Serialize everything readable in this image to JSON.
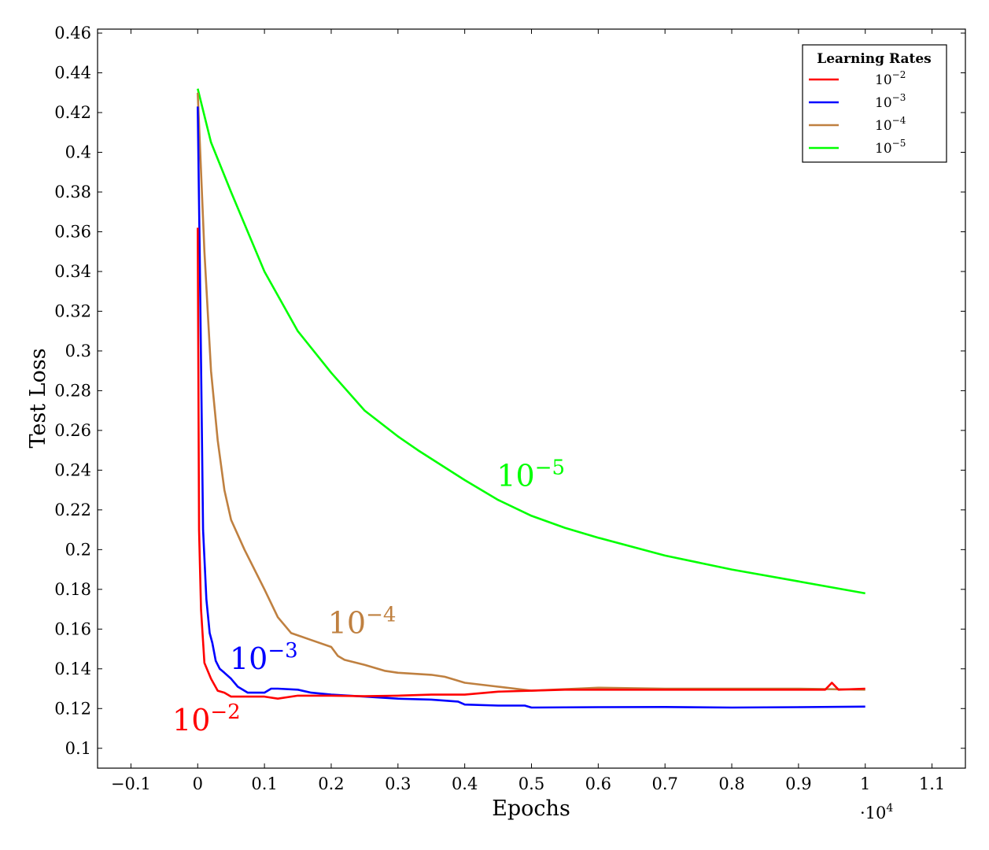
{
  "chart_data": {
    "type": "line",
    "xlabel": "Epochs",
    "ylabel": "Test Loss",
    "x_multiplier_label": "·10",
    "x_multiplier_exp": "4",
    "xlim": [
      -0.15,
      1.15
    ],
    "ylim": [
      0.09,
      0.462
    ],
    "xticks": [
      -0.1,
      0,
      0.1,
      0.2,
      0.3,
      0.4,
      0.5,
      0.6,
      0.7,
      0.8,
      0.9,
      1,
      1.1
    ],
    "xtick_labels": [
      "−0.1",
      "0",
      "0.1",
      "0.2",
      "0.3",
      "0.4",
      "0.5",
      "0.6",
      "0.7",
      "0.8",
      "0.9",
      "1",
      "1.1"
    ],
    "yticks": [
      0.1,
      0.12,
      0.14,
      0.16,
      0.18,
      0.2,
      0.22,
      0.24,
      0.26,
      0.28,
      0.3,
      0.32,
      0.34,
      0.36,
      0.38,
      0.4,
      0.42,
      0.44,
      0.46
    ],
    "ytick_labels": [
      "0.1",
      "0.12",
      "0.14",
      "0.16",
      "0.18",
      "0.2",
      "0.22",
      "0.24",
      "0.26",
      "0.28",
      "0.3",
      "0.32",
      "0.34",
      "0.36",
      "0.38",
      "0.4",
      "0.42",
      "0.44",
      "0.46"
    ],
    "grid": false,
    "legend": {
      "title": "Learning Rates",
      "placement": "top-right",
      "entries": [
        {
          "base": "10",
          "exp": "−2",
          "color": "#ff0000"
        },
        {
          "base": "10",
          "exp": "−3",
          "color": "#0000ff"
        },
        {
          "base": "10",
          "exp": "−4",
          "color": "#bf8040"
        },
        {
          "base": "10",
          "exp": "−5",
          "color": "#00ff00"
        }
      ]
    },
    "series": [
      {
        "color": "#ff0000",
        "annotation_base": "10",
        "annotation_exp": "−2",
        "x": [
          0,
          0.002,
          0.005,
          0.01,
          0.02,
          0.03,
          0.04,
          0.05,
          0.07,
          0.1,
          0.12,
          0.15,
          0.2,
          0.25,
          0.3,
          0.35,
          0.4,
          0.45,
          0.5,
          0.55,
          0.6,
          0.7,
          0.8,
          0.9,
          0.94,
          0.95,
          0.96,
          1.0
        ],
        "y": [
          0.362,
          0.21,
          0.17,
          0.143,
          0.135,
          0.129,
          0.128,
          0.126,
          0.126,
          0.126,
          0.125,
          0.1265,
          0.1265,
          0.1262,
          0.1265,
          0.127,
          0.127,
          0.1285,
          0.129,
          0.1295,
          0.1295,
          0.1295,
          0.1295,
          0.1295,
          0.1295,
          0.133,
          0.1295,
          0.13
        ]
      },
      {
        "color": "#0000ff",
        "annotation_base": "10",
        "annotation_exp": "−3",
        "x": [
          0,
          0.003,
          0.008,
          0.013,
          0.018,
          0.022,
          0.027,
          0.033,
          0.04,
          0.05,
          0.06,
          0.075,
          0.1,
          0.11,
          0.12,
          0.15,
          0.17,
          0.2,
          0.25,
          0.3,
          0.35,
          0.39,
          0.4,
          0.45,
          0.49,
          0.5,
          0.6,
          0.7,
          0.8,
          0.9,
          1.0
        ],
        "y": [
          0.423,
          0.35,
          0.21,
          0.175,
          0.158,
          0.153,
          0.144,
          0.14,
          0.138,
          0.135,
          0.131,
          0.128,
          0.128,
          0.13,
          0.13,
          0.1295,
          0.128,
          0.127,
          0.126,
          0.125,
          0.1245,
          0.1235,
          0.122,
          0.1215,
          0.1215,
          0.1205,
          0.1207,
          0.1208,
          0.1205,
          0.1207,
          0.121
        ]
      },
      {
        "color": "#bf8040",
        "annotation_base": "10",
        "annotation_exp": "−4",
        "x": [
          0,
          0.01,
          0.02,
          0.03,
          0.04,
          0.05,
          0.07,
          0.1,
          0.12,
          0.14,
          0.17,
          0.2,
          0.21,
          0.22,
          0.25,
          0.28,
          0.3,
          0.35,
          0.37,
          0.38,
          0.4,
          0.45,
          0.5,
          0.6,
          0.7,
          0.8,
          0.9,
          1.0
        ],
        "y": [
          0.43,
          0.35,
          0.29,
          0.255,
          0.23,
          0.215,
          0.2,
          0.18,
          0.166,
          0.158,
          0.1545,
          0.151,
          0.1465,
          0.1445,
          0.142,
          0.139,
          0.138,
          0.137,
          0.136,
          0.135,
          0.133,
          0.131,
          0.129,
          0.1305,
          0.13,
          0.13,
          0.13,
          0.1295
        ]
      },
      {
        "color": "#00ff00",
        "annotation_base": "10",
        "annotation_exp": "−5",
        "x": [
          0,
          0.02,
          0.05,
          0.1,
          0.15,
          0.2,
          0.25,
          0.3,
          0.33,
          0.4,
          0.45,
          0.5,
          0.55,
          0.6,
          0.7,
          0.8,
          0.9,
          1.0
        ],
        "y": [
          0.432,
          0.405,
          0.38,
          0.34,
          0.31,
          0.289,
          0.27,
          0.257,
          0.25,
          0.235,
          0.225,
          0.217,
          0.211,
          0.206,
          0.197,
          0.19,
          0.184,
          0.178
        ]
      }
    ]
  }
}
